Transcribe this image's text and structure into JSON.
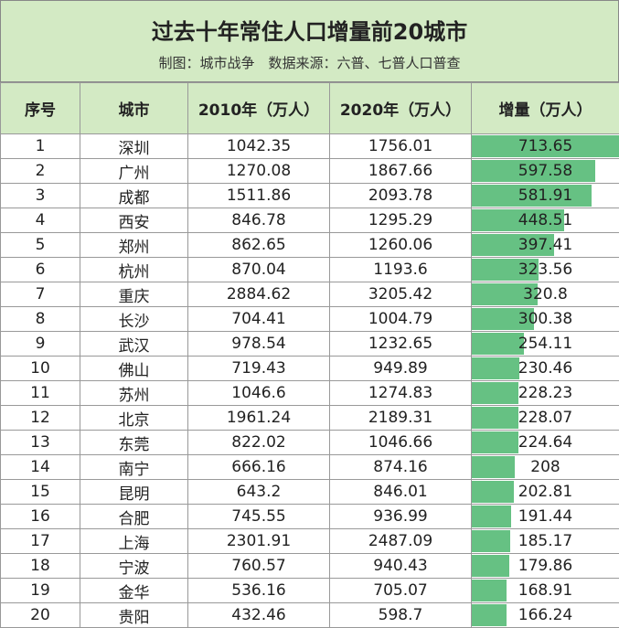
{
  "header": {
    "title": "过去十年常住人口增量前20城市",
    "subtitle": "制图：城市战争　数据来源：六普、七普人口普查"
  },
  "table": {
    "columns": [
      "序号",
      "城市",
      "2010年（万人）",
      "2020年（万人）",
      "增量（万人）"
    ],
    "bar_color": "#66c183",
    "rows": [
      [
        1,
        "深圳",
        1042.35,
        1756.01,
        713.65
      ],
      [
        2,
        "广州",
        1270.08,
        1867.66,
        597.58
      ],
      [
        3,
        "成都",
        1511.86,
        2093.78,
        581.91
      ],
      [
        4,
        "西安",
        846.78,
        1295.29,
        448.51
      ],
      [
        5,
        "郑州",
        862.65,
        1260.06,
        397.41
      ],
      [
        6,
        "杭州",
        870.04,
        1193.6,
        323.56
      ],
      [
        7,
        "重庆",
        2884.62,
        3205.42,
        320.8
      ],
      [
        8,
        "长沙",
        704.41,
        1004.79,
        300.38
      ],
      [
        9,
        "武汉",
        978.54,
        1232.65,
        254.11
      ],
      [
        10,
        "佛山",
        719.43,
        949.89,
        230.46
      ],
      [
        11,
        "苏州",
        1046.6,
        1274.83,
        228.23
      ],
      [
        12,
        "北京",
        1961.24,
        2189.31,
        228.07
      ],
      [
        13,
        "东莞",
        822.02,
        1046.66,
        224.64
      ],
      [
        14,
        "南宁",
        666.16,
        874.16,
        208
      ],
      [
        15,
        "昆明",
        643.2,
        846.01,
        202.81
      ],
      [
        16,
        "合肥",
        745.55,
        936.99,
        191.44
      ],
      [
        17,
        "上海",
        2301.91,
        2487.09,
        185.17
      ],
      [
        18,
        "宁波",
        760.57,
        940.43,
        179.86
      ],
      [
        19,
        "金华",
        536.16,
        705.07,
        168.91
      ],
      [
        20,
        "贵阳",
        432.46,
        598.7,
        166.24
      ]
    ]
  }
}
